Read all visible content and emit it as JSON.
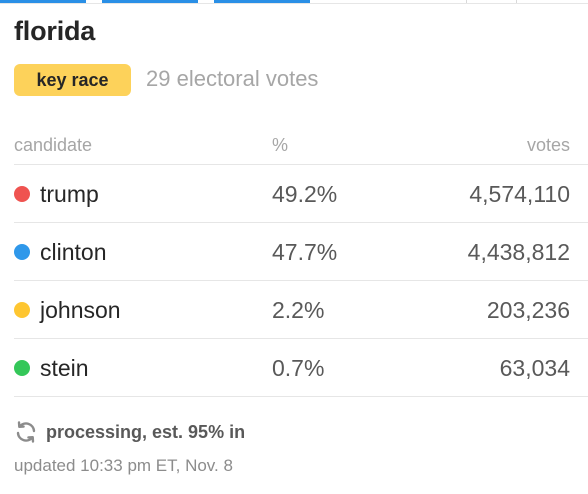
{
  "colors": {
    "accent_blue": "#2a8fe6",
    "badge_yellow": "#fdd25a",
    "trump": "#ef5350",
    "clinton": "#2f98ea",
    "johnson": "#fec631",
    "stein": "#34c759"
  },
  "race": {
    "state": "florida",
    "badge_label": "key race",
    "electoral_votes": "29 electoral votes"
  },
  "table": {
    "headers": {
      "candidate": "candidate",
      "percent": "%",
      "votes": "votes"
    },
    "rows": [
      {
        "candidate": "trump",
        "percent": "49.2%",
        "votes": "4,574,110",
        "color": "#ef5350"
      },
      {
        "candidate": "clinton",
        "percent": "47.7%",
        "votes": "4,438,812",
        "color": "#2f98ea"
      },
      {
        "candidate": "johnson",
        "percent": "2.2%",
        "votes": "203,236",
        "color": "#fec631"
      },
      {
        "candidate": "stein",
        "percent": "0.7%",
        "votes": "63,034",
        "color": "#34c759"
      }
    ]
  },
  "status": {
    "icon": "sync-icon",
    "text": "processing, est. 95% in",
    "updated": "updated 10:33 pm ET, Nov. 8"
  }
}
